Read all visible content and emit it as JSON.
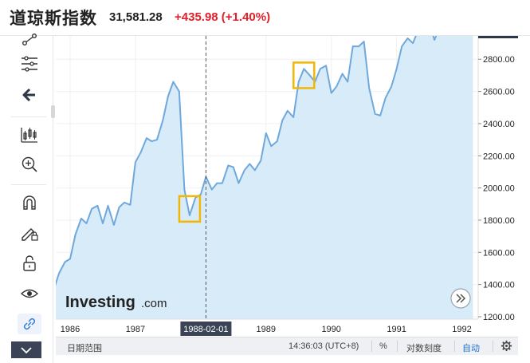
{
  "header": {
    "title": "道琼斯指数",
    "price": "31,581.28",
    "change": "+435.98 (+1.40%)"
  },
  "colors": {
    "line": "#6fa8dc",
    "fill": "#d7ebf8",
    "negative": "#e0202a",
    "highlight": "#f2b705"
  },
  "toolbar": {
    "items": [
      "trend-line-icon",
      "fib-retracement-icon",
      "back-arrow-icon",
      "indicators-icon",
      "zoom-in-icon",
      "magnet-icon",
      "lock-pencil-icon",
      "lock-icon",
      "eye-icon",
      "link-icon"
    ]
  },
  "watermark": {
    "brand": "Investing",
    "suffix": ".com"
  },
  "chart_data": {
    "type": "area",
    "x_ticks": [
      "1986",
      "1987",
      "1988-02-01",
      "1989",
      "1990",
      "1991",
      "1992"
    ],
    "y_ticks": [
      "1200.00",
      "1400.00",
      "1600.00",
      "1800.00",
      "2000.00",
      "2200.00",
      "2400.00",
      "2600.00",
      "2800.00"
    ],
    "crosshair_label": "1988-02-01",
    "ylim": [
      1200,
      2950
    ],
    "x": [
      1985.75,
      1985.83,
      1985.92,
      1986.0,
      1986.08,
      1986.17,
      1986.25,
      1986.33,
      1986.42,
      1986.5,
      1986.58,
      1986.67,
      1986.75,
      1986.83,
      1986.92,
      1987.0,
      1987.08,
      1987.17,
      1987.25,
      1987.33,
      1987.42,
      1987.5,
      1987.58,
      1987.67,
      1987.75,
      1987.83,
      1987.92,
      1988.0,
      1988.08,
      1988.17,
      1988.25,
      1988.33,
      1988.42,
      1988.5,
      1988.58,
      1988.67,
      1988.75,
      1988.83,
      1988.92,
      1989.0,
      1989.08,
      1989.17,
      1989.25,
      1989.33,
      1989.42,
      1989.5,
      1989.58,
      1989.67,
      1989.75,
      1989.83,
      1989.92,
      1990.0,
      1990.08,
      1990.17,
      1990.25,
      1990.33,
      1990.42,
      1990.5,
      1990.58,
      1990.67,
      1990.75,
      1990.83,
      1990.92,
      1991.0,
      1991.08,
      1991.17,
      1991.25,
      1991.33,
      1991.42,
      1991.5,
      1991.58,
      1991.67,
      1991.75,
      1991.83,
      1991.92,
      1992.0,
      1992.08,
      1992.17
    ],
    "values": [
      1370,
      1470,
      1540,
      1560,
      1710,
      1810,
      1780,
      1870,
      1890,
      1780,
      1890,
      1770,
      1880,
      1910,
      1895,
      2160,
      2220,
      2310,
      2290,
      2300,
      2420,
      2570,
      2660,
      2600,
      1990,
      1830,
      1940,
      1960,
      2070,
      1990,
      2030,
      2030,
      2140,
      2130,
      2030,
      2110,
      2150,
      2110,
      2170,
      2340,
      2260,
      2290,
      2420,
      2480,
      2440,
      2660,
      2740,
      2700,
      2660,
      2740,
      2760,
      2590,
      2630,
      2710,
      2660,
      2880,
      2880,
      2910,
      2620,
      2460,
      2450,
      2560,
      2630,
      2740,
      2880,
      2930,
      2900,
      2980,
      2960,
      3030,
      2920,
      3010,
      3070,
      3080,
      2990,
      3170,
      3040,
      3060
    ],
    "y_scale": "linear",
    "grid": true,
    "annotations": [
      {
        "type": "box",
        "x": 1987.83,
        "y": 1870
      },
      {
        "type": "box",
        "x": 1989.58,
        "y": 2700
      }
    ]
  },
  "bottom_bar": {
    "range_label": "日期范围",
    "time": "14:36:03 (UTC+8)",
    "percent": "%",
    "log": "对数刻度",
    "auto": "自动"
  }
}
